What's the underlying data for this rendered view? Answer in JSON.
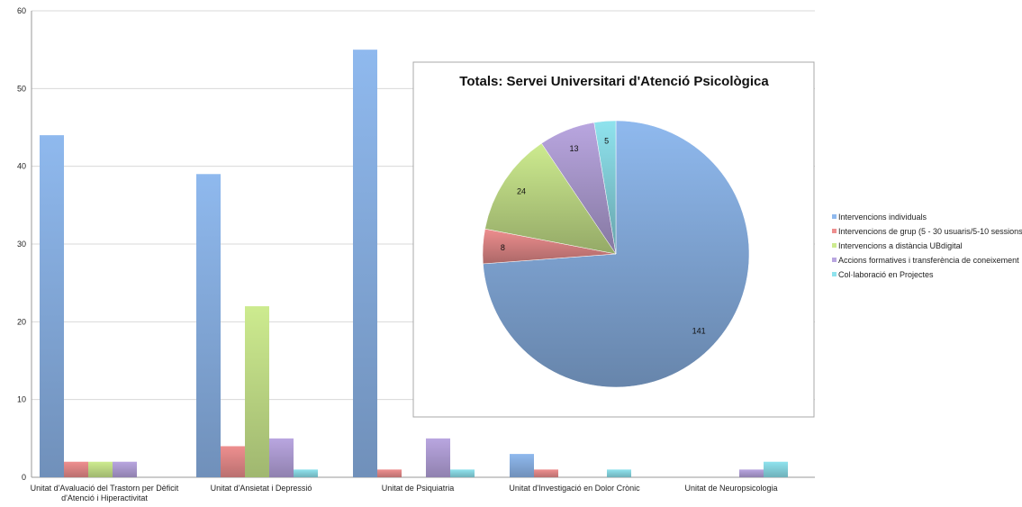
{
  "chart_data": [
    {
      "type": "bar",
      "categories": [
        "Unitat d'Avaluació del Trastorn per Dèficit d'Atenció i Hiperactivitat",
        "Unitat d'Ansietat i Depressió",
        "Unitat de Psiquiatria",
        "Unitat d'Investigació en Dolor Crònic",
        "Unitat de Neuropsicologia"
      ],
      "category_lines": [
        [
          "Unitat d'Avaluació del Trastorn per Dèficit",
          "d'Atenció i Hiperactivitat"
        ],
        [
          "Unitat d'Ansietat i Depressió"
        ],
        [
          "Unitat de Psiquiatria"
        ],
        [
          "Unitat d'Investigació en Dolor Crònic"
        ],
        [
          "Unitat de Neuropsicologia"
        ]
      ],
      "series": [
        {
          "name": "Intervencions individuals",
          "color": "#8fb9ee",
          "values": [
            44,
            39,
            55,
            3,
            0
          ]
        },
        {
          "name": "Intervencions de grup (5 - 30 usuaris/5-10 sessions )",
          "color": "#ee8f8f",
          "values": [
            2,
            4,
            1,
            1,
            0
          ]
        },
        {
          "name": "Intervencions a distància UBdigital",
          "color": "#cdeb8f",
          "values": [
            2,
            22,
            0,
            0,
            0
          ]
        },
        {
          "name": "Accions formatives i transferència de coneixement",
          "color": "#b9a6e0",
          "values": [
            2,
            5,
            5,
            0,
            1
          ]
        },
        {
          "name": "Col·laboració en Projectes",
          "color": "#8fe3ee",
          "values": [
            0,
            1,
            1,
            1,
            2
          ]
        }
      ],
      "ylim": [
        0,
        60
      ],
      "yticks": [
        0,
        10,
        20,
        30,
        40,
        50,
        60
      ],
      "grid": true,
      "legend": "right"
    },
    {
      "type": "pie",
      "title": "Totals: Servei Universitari d'Atenció Psicològica",
      "slices": [
        {
          "label": "141",
          "value": 141,
          "color": "#8fb9ee"
        },
        {
          "label": "8",
          "value": 8,
          "color": "#ee8f8f"
        },
        {
          "label": "24",
          "value": 24,
          "color": "#cdeb8f"
        },
        {
          "label": "13",
          "value": 13,
          "color": "#b9a6e0"
        },
        {
          "label": "5",
          "value": 5,
          "color": "#8fe3ee"
        }
      ]
    }
  ]
}
